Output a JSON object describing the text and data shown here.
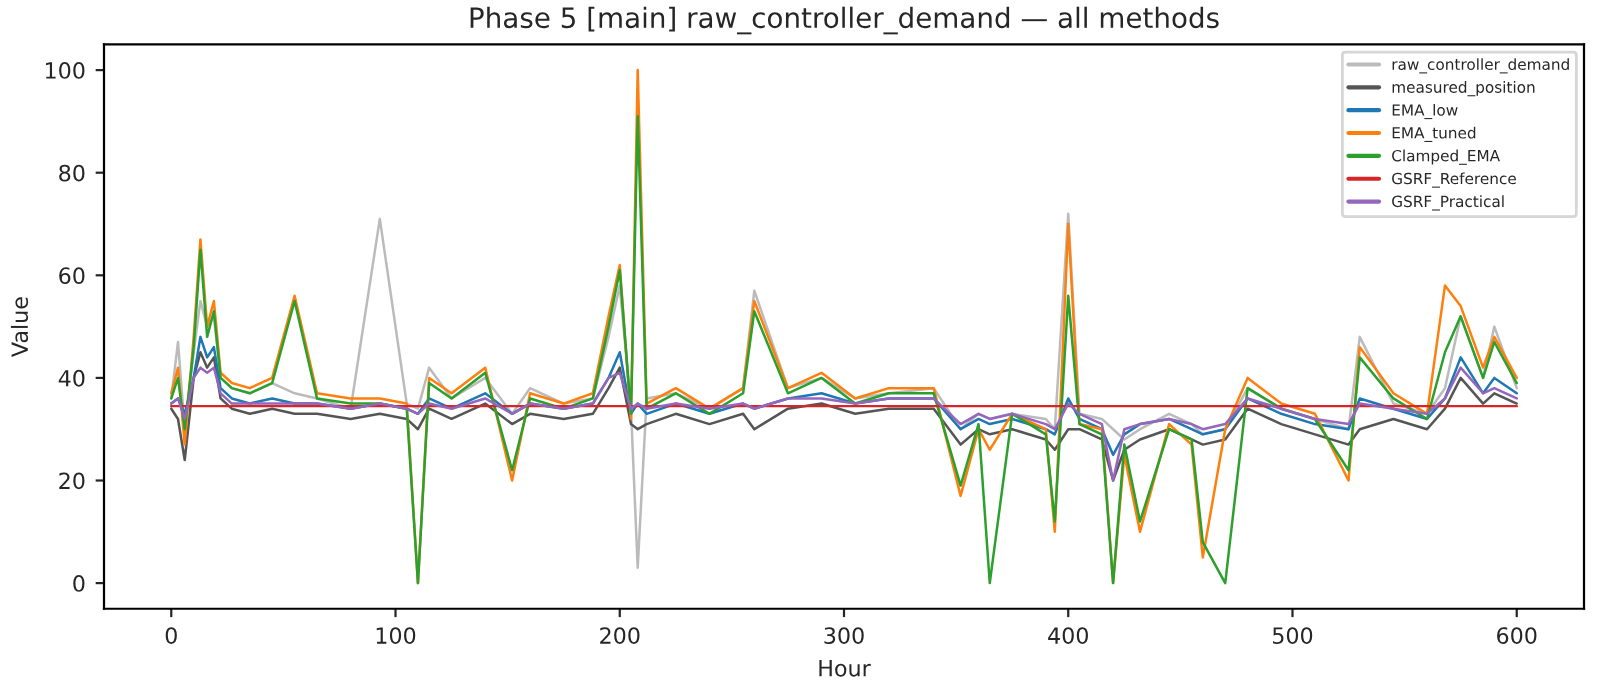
{
  "chart_data": {
    "type": "line",
    "title": "Phase 5 [main] raw_controller_demand — all methods",
    "xlabel": "Hour",
    "ylabel": "Value",
    "x": [
      0,
      3,
      6,
      10,
      13,
      16,
      19,
      22,
      27,
      35,
      45,
      55,
      65,
      80,
      93,
      105,
      110,
      115,
      125,
      140,
      152,
      160,
      175,
      188,
      195,
      200,
      205,
      208,
      212,
      225,
      240,
      255,
      260,
      275,
      290,
      305,
      320,
      340,
      352,
      360,
      365,
      375,
      390,
      394,
      400,
      405,
      415,
      420,
      425,
      432,
      445,
      455,
      460,
      470,
      480,
      495,
      510,
      525,
      530,
      545,
      560,
      568,
      575,
      585,
      590,
      600
    ],
    "series": [
      {
        "name": "raw_controller_demand",
        "color": "#bbbbbb",
        "values": [
          36,
          47,
          30,
          45,
          55,
          50,
          52,
          40,
          38,
          37,
          39,
          37,
          36,
          34,
          71,
          35,
          34,
          42,
          36,
          40,
          33,
          38,
          35,
          36,
          48,
          58,
          34,
          3,
          36,
          37,
          34,
          38,
          57,
          38,
          40,
          36,
          37,
          38,
          30,
          33,
          32,
          33,
          32,
          30,
          72,
          33,
          32,
          30,
          28,
          30,
          33,
          31,
          29,
          30,
          38,
          34,
          32,
          30,
          48,
          35,
          33,
          38,
          52,
          40,
          50,
          38
        ]
      },
      {
        "name": "measured_position",
        "color": "#555555",
        "values": [
          34,
          32,
          24,
          40,
          45,
          42,
          44,
          36,
          34,
          33,
          34,
          33,
          33,
          32,
          33,
          32,
          30,
          34,
          32,
          35,
          31,
          33,
          32,
          33,
          38,
          42,
          31,
          30,
          31,
          33,
          31,
          33,
          30,
          34,
          35,
          33,
          34,
          34,
          27,
          30,
          29,
          30,
          28,
          26,
          30,
          30,
          28,
          20,
          26,
          28,
          30,
          28,
          27,
          28,
          34,
          31,
          29,
          27,
          30,
          32,
          30,
          34,
          40,
          35,
          37,
          35
        ]
      },
      {
        "name": "EMA_low",
        "color": "#1f77b4",
        "values": [
          35,
          36,
          33,
          40,
          48,
          44,
          46,
          38,
          36,
          35,
          36,
          35,
          35,
          34,
          35,
          34,
          33,
          36,
          34,
          37,
          33,
          35,
          34,
          35,
          40,
          45,
          33,
          35,
          33,
          35,
          33,
          35,
          34,
          36,
          37,
          35,
          36,
          36,
          30,
          32,
          31,
          32,
          30,
          29,
          36,
          32,
          30,
          25,
          29,
          31,
          32,
          30,
          29,
          30,
          36,
          33,
          31,
          30,
          36,
          34,
          32,
          36,
          44,
          37,
          40,
          37
        ]
      },
      {
        "name": "EMA_tuned",
        "color": "#ff7f0e",
        "values": [
          37,
          42,
          27,
          48,
          67,
          50,
          55,
          41,
          39,
          38,
          40,
          56,
          37,
          36,
          36,
          35,
          0,
          40,
          37,
          42,
          20,
          37,
          35,
          37,
          52,
          62,
          32,
          100,
          35,
          38,
          34,
          38,
          55,
          38,
          41,
          36,
          38,
          38,
          17,
          30,
          26,
          33,
          30,
          10,
          70,
          31,
          30,
          0,
          25,
          10,
          31,
          27,
          5,
          30,
          40,
          35,
          33,
          20,
          46,
          37,
          33,
          58,
          54,
          42,
          48,
          40
        ]
      },
      {
        "name": "Clamped_EMA",
        "color": "#2ca02c",
        "values": [
          36,
          40,
          30,
          46,
          65,
          48,
          53,
          40,
          38,
          37,
          39,
          55,
          36,
          35,
          35,
          34,
          0,
          39,
          36,
          41,
          22,
          36,
          34,
          36,
          50,
          61,
          33,
          91,
          34,
          37,
          33,
          37,
          53,
          37,
          40,
          35,
          37,
          37,
          19,
          31,
          0,
          33,
          29,
          12,
          56,
          31,
          29,
          0,
          27,
          12,
          30,
          28,
          8,
          0,
          38,
          34,
          32,
          22,
          44,
          36,
          32,
          45,
          52,
          40,
          47,
          39
        ]
      },
      {
        "name": "GSRF_Reference",
        "color": "#d62728",
        "values": [
          34.5,
          34.5,
          34.5,
          34.5,
          34.5,
          34.5,
          34.5,
          34.5,
          34.5,
          34.5,
          34.5,
          34.5,
          34.5,
          34.5,
          34.5,
          34.5,
          34.5,
          34.5,
          34.5,
          34.5,
          34.5,
          34.5,
          34.5,
          34.5,
          34.5,
          34.5,
          34.5,
          34.5,
          34.5,
          34.5,
          34.5,
          34.5,
          34.5,
          34.5,
          34.5,
          34.5,
          34.5,
          34.5,
          34.5,
          34.5,
          34.5,
          34.5,
          34.5,
          34.5,
          34.5,
          34.5,
          34.5,
          34.5,
          34.5,
          34.5,
          34.5,
          34.5,
          34.5,
          34.5,
          34.5,
          34.5,
          34.5,
          34.5,
          34.5,
          34.5,
          34.5,
          34.5,
          34.5,
          34.5,
          34.5,
          34.5
        ]
      },
      {
        "name": "GSRF_Practical",
        "color": "#9467bd",
        "values": [
          35,
          36,
          32,
          40,
          42,
          41,
          42,
          37,
          35,
          35,
          35,
          35,
          35,
          34,
          35,
          34,
          33,
          35,
          34,
          36,
          33,
          35,
          34,
          35,
          40,
          41,
          34,
          35,
          34,
          35,
          34,
          35,
          34,
          36,
          36,
          35,
          36,
          36,
          31,
          33,
          32,
          33,
          31,
          30,
          35,
          33,
          31,
          20,
          30,
          31,
          32,
          31,
          30,
          31,
          36,
          34,
          32,
          31,
          35,
          34,
          33,
          36,
          42,
          37,
          38,
          36
        ]
      }
    ],
    "xlim": [
      -30,
      630
    ],
    "xticks": [
      0,
      100,
      200,
      300,
      400,
      500,
      600
    ],
    "ylim": [
      -5,
      105
    ],
    "yticks": [
      0,
      20,
      40,
      60,
      80,
      100
    ],
    "grid": false,
    "legend": "top right",
    "marker": "none",
    "line_style": "solid"
  }
}
